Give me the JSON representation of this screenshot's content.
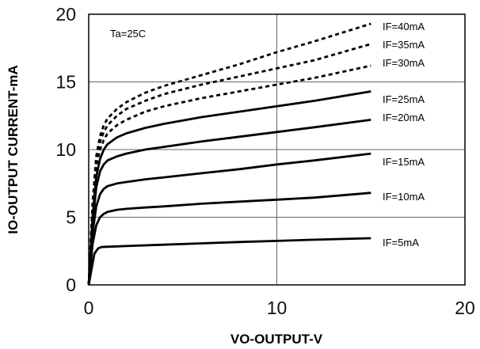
{
  "chart_data": {
    "type": "line",
    "title": "",
    "xlabel": "VO-OUTPUT-V",
    "ylabel": "IO-OUTPUT CURRENT-mA",
    "xlim": [
      0,
      20
    ],
    "ylim": [
      0,
      20
    ],
    "xticks": [
      "0",
      "10",
      "20"
    ],
    "yticks": [
      "0",
      "5",
      "10",
      "15",
      "20"
    ],
    "grid": true,
    "annotation": "Ta=25C",
    "series": [
      {
        "name": "IF=5mA",
        "dash": false,
        "x": [
          0,
          0.3,
          0.5,
          0.7,
          1,
          2,
          4,
          6,
          8,
          10,
          12,
          15
        ],
        "y": [
          0,
          2.3,
          2.7,
          2.8,
          2.82,
          2.87,
          2.97,
          3.07,
          3.17,
          3.25,
          3.34,
          3.45
        ]
      },
      {
        "name": "IF=10mA",
        "dash": false,
        "x": [
          0,
          0.2,
          0.4,
          0.6,
          0.8,
          1,
          1.5,
          2,
          3,
          4,
          6,
          8,
          10,
          12,
          15
        ],
        "y": [
          0,
          3.0,
          4.4,
          5.0,
          5.25,
          5.4,
          5.55,
          5.62,
          5.72,
          5.8,
          6.0,
          6.15,
          6.3,
          6.45,
          6.8
        ]
      },
      {
        "name": "IF=15mA",
        "dash": false,
        "x": [
          0,
          0.2,
          0.4,
          0.6,
          0.8,
          1,
          1.5,
          2,
          3,
          4,
          6,
          8,
          10,
          12,
          15
        ],
        "y": [
          0,
          3.8,
          5.8,
          6.7,
          7.1,
          7.3,
          7.5,
          7.6,
          7.8,
          7.95,
          8.25,
          8.55,
          8.9,
          9.2,
          9.7
        ]
      },
      {
        "name": "IF=20mA",
        "dash": false,
        "x": [
          0,
          0.2,
          0.4,
          0.6,
          0.8,
          1,
          1.5,
          2,
          3,
          4,
          6,
          8,
          10,
          12,
          15
        ],
        "y": [
          0,
          4.5,
          7.2,
          8.4,
          8.9,
          9.2,
          9.5,
          9.7,
          10.0,
          10.2,
          10.6,
          10.95,
          11.3,
          11.65,
          12.2
        ]
      },
      {
        "name": "IF=25mA",
        "dash": false,
        "x": [
          0,
          0.2,
          0.4,
          0.6,
          0.8,
          1,
          1.5,
          2,
          3,
          4,
          6,
          8,
          10,
          12,
          15
        ],
        "y": [
          0,
          5.0,
          8.0,
          9.3,
          10.0,
          10.4,
          10.9,
          11.2,
          11.6,
          11.9,
          12.4,
          12.8,
          13.2,
          13.6,
          14.3
        ]
      },
      {
        "name": "IF=30mA",
        "dash": true,
        "x": [
          0,
          0.2,
          0.4,
          0.6,
          0.8,
          1,
          1.5,
          2,
          3,
          4,
          6,
          8,
          10,
          12,
          15
        ],
        "y": [
          0,
          5.5,
          8.8,
          10.0,
          10.7,
          11.2,
          11.8,
          12.2,
          12.8,
          13.2,
          13.8,
          14.3,
          14.8,
          15.3,
          16.2
        ]
      },
      {
        "name": "IF=35mA",
        "dash": true,
        "x": [
          0,
          0.2,
          0.4,
          0.6,
          0.8,
          1,
          1.5,
          2,
          3,
          4,
          6,
          8,
          10,
          12,
          15
        ],
        "y": [
          0,
          5.8,
          9.2,
          10.6,
          11.3,
          11.8,
          12.5,
          13.0,
          13.6,
          14.1,
          14.8,
          15.4,
          16.0,
          16.6,
          17.8
        ]
      },
      {
        "name": "IF=40mA",
        "dash": true,
        "x": [
          0,
          0.2,
          0.4,
          0.6,
          0.8,
          1,
          1.5,
          2,
          3,
          4,
          6,
          8,
          10,
          12,
          15
        ],
        "y": [
          0,
          6.0,
          9.5,
          11.0,
          11.8,
          12.3,
          13.0,
          13.5,
          14.2,
          14.7,
          15.5,
          16.3,
          17.2,
          18.0,
          19.3
        ]
      }
    ]
  }
}
